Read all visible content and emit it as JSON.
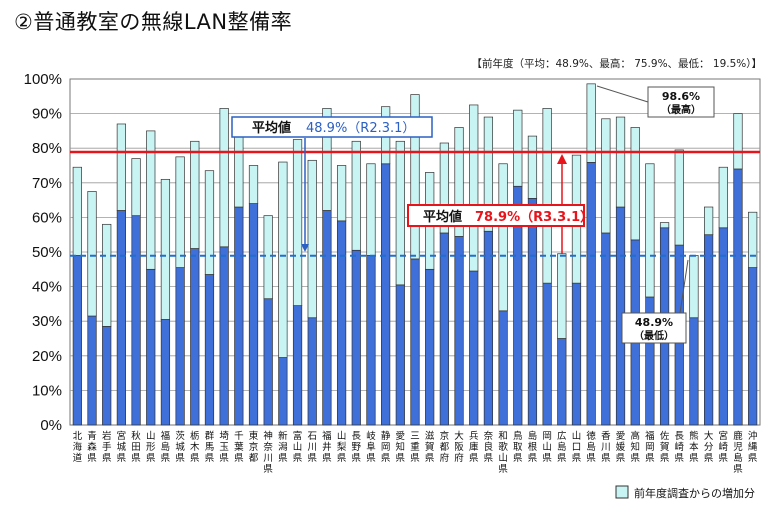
{
  "page_title": "②普通教室の無線LAN整備率",
  "prev_year_stats": "【前年度（平均：48.9%、最高： 75.9%、最低： 19.5%）】",
  "chart_data": {
    "type": "bar",
    "stacked": true,
    "ylim": [
      0,
      100
    ],
    "y_ticks": [
      "0%",
      "10%",
      "20%",
      "30%",
      "40%",
      "50%",
      "60%",
      "70%",
      "80%",
      "90%",
      "100%"
    ],
    "grid": true,
    "categories": [
      "北海道",
      "青森県",
      "岩手県",
      "宮城県",
      "秋田県",
      "山形県",
      "福島県",
      "茨城県",
      "栃木県",
      "群馬県",
      "埼玉県",
      "千葉県",
      "東京都",
      "神奈川県",
      "新潟県",
      "富山県",
      "石川県",
      "福井県",
      "山梨県",
      "長野県",
      "岐阜県",
      "静岡県",
      "愛知県",
      "三重県",
      "滋賀県",
      "京都府",
      "大阪府",
      "兵庫県",
      "奈良県",
      "和歌山県",
      "鳥取県",
      "島根県",
      "岡山県",
      "広島県",
      "山口県",
      "徳島県",
      "香川県",
      "愛媛県",
      "高知県",
      "福岡県",
      "佐賀県",
      "長崎県",
      "熊本県",
      "大分県",
      "宮崎県",
      "鹿児島県",
      "沖縄県"
    ],
    "series": [
      {
        "values": [
          49,
          31.5,
          28.5,
          62,
          60.5,
          45,
          30.5,
          45.5,
          51,
          43.5,
          51.5,
          63,
          64,
          36.5,
          19.5,
          34.5,
          31,
          62,
          59,
          50.5,
          49,
          75.5,
          40.5,
          48,
          45,
          55.5,
          54.5,
          44.5,
          56,
          33,
          69,
          65.5,
          41,
          25,
          41,
          75.9,
          55.5,
          63,
          53.5,
          37,
          57,
          52,
          31,
          55,
          57,
          74,
          45.5
        ]
      },
      {
        "name": "前年度調査からの増加分",
        "values": [
          25.5,
          36,
          29.5,
          25,
          16.5,
          40,
          40.5,
          32,
          31,
          30,
          40,
          21,
          11,
          24,
          56.5,
          48,
          45.5,
          29.5,
          16,
          31.5,
          26.5,
          16.5,
          41.5,
          47.5,
          28,
          26,
          31.5,
          48,
          33,
          42.5,
          22,
          18,
          50.5,
          24.5,
          37,
          22.7,
          33,
          26,
          32.5,
          38.5,
          1.5,
          27.5,
          18,
          8,
          17.5,
          16,
          16
        ]
      }
    ],
    "colors": {
      "base": "#3f6fd8",
      "increase": "#c9f4f4",
      "bar_edge": "#333333",
      "current_avg_line": "#e8141b",
      "prev_avg_line": "#1e6fd0"
    },
    "reference_lines": {
      "current_average": 78.9,
      "previous_average": 48.9
    },
    "annotations": {
      "prev_avg_label": "平均値",
      "prev_avg_value": "48.9%（R2.3.1）",
      "curr_avg_label": "平均値",
      "curr_avg_value": "78.9%（R3.3.1）",
      "max_value": "98.6%",
      "max_label": "（最高）",
      "min_value": "48.9%",
      "min_label": "（最低）"
    },
    "legend": {
      "position": "bottom-right",
      "label": "前年度調査からの増加分"
    }
  }
}
